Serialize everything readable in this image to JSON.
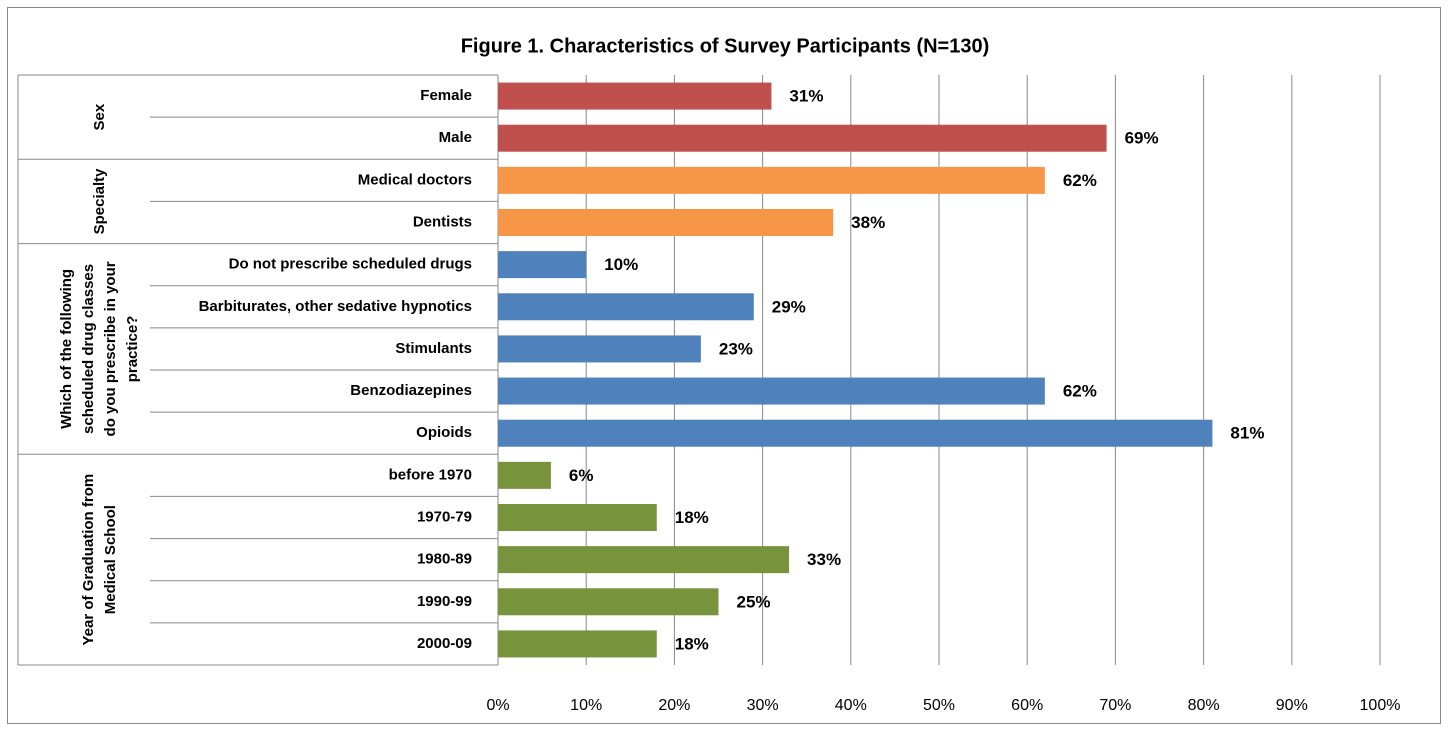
{
  "chart_data": {
    "type": "grouped-bar",
    "title": "Figure 1. Characteristics of Survey Participants (N=130)",
    "groups": [
      {
        "name": [
          "Sex"
        ],
        "color": "#c0504d",
        "categories": [
          "Female",
          "Male"
        ],
        "values": [
          31,
          69
        ],
        "value_labels": [
          "31%",
          "69%"
        ]
      },
      {
        "name": [
          "Specialty"
        ],
        "color": "#f79646",
        "categories": [
          "Medical doctors",
          "Dentists"
        ],
        "values": [
          62,
          38
        ],
        "value_labels": [
          "62%",
          "38%"
        ]
      },
      {
        "name": [
          "Which of the following",
          "scheduled drug classes",
          "do you prescribe in your",
          "practice?"
        ],
        "color": "#4f81bd",
        "categories": [
          "Do not prescribe scheduled drugs",
          "Barbiturates, other sedative hypnotics",
          "Stimulants",
          "Benzodiazepines",
          "Opioids"
        ],
        "values": [
          10,
          29,
          23,
          62,
          81
        ],
        "value_labels": [
          "10%",
          "29%",
          "23%",
          "62%",
          "81%"
        ]
      },
      {
        "name": [
          "Year of Graduation  from",
          "Medical School"
        ],
        "color": "#77933c",
        "categories": [
          "before 1970",
          "1970-79",
          "1980-89",
          "1990-99",
          "2000-09"
        ],
        "values": [
          6,
          18,
          33,
          25,
          18
        ],
        "value_labels": [
          "6%",
          "18%",
          "33%",
          "25%",
          "18%"
        ]
      }
    ],
    "xlim": [
      0,
      100
    ],
    "xticks": [
      {
        "value": 0,
        "label": "0%"
      },
      {
        "value": 10,
        "label": "10%"
      },
      {
        "value": 20,
        "label": "20%"
      },
      {
        "value": 30,
        "label": "30%"
      },
      {
        "value": 40,
        "label": "40%"
      },
      {
        "value": 50,
        "label": "50%"
      },
      {
        "value": 60,
        "label": "60%"
      },
      {
        "value": 70,
        "label": "70%"
      },
      {
        "value": 80,
        "label": "80%"
      },
      {
        "value": 90,
        "label": "90%"
      },
      {
        "value": 100,
        "label": "100%"
      }
    ],
    "grid": true
  }
}
